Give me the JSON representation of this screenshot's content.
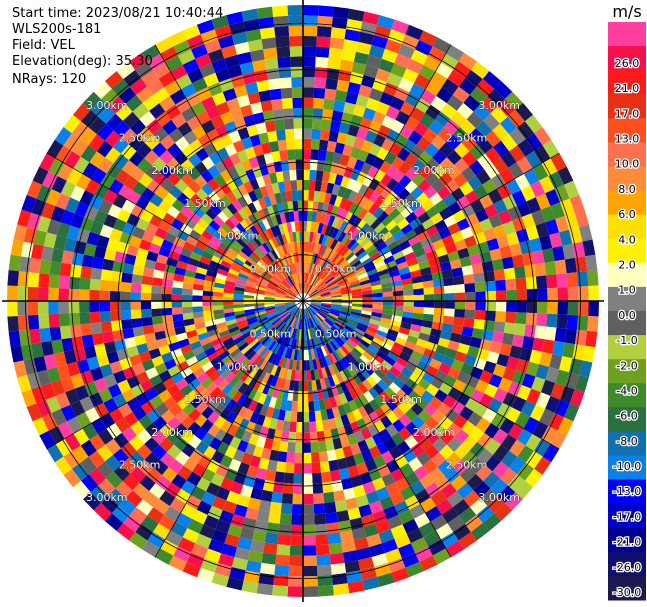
{
  "info": {
    "start_time": "Start time: 2023/08/21 10:40:44",
    "instrument": "WLS200s-181",
    "field": "Field: VEL",
    "elevation": "Elevation(deg): 35.30",
    "nrays": "NRays: 120"
  },
  "colorbar": {
    "unit": "m/s",
    "ticks": [
      "26.0",
      "21.0",
      "17.0",
      "13.0",
      "10.0",
      "8.0",
      "6.0",
      "4.0",
      "2.0",
      "1.0",
      "0.0",
      "-1.0",
      "-2.0",
      "-4.0",
      "-6.0",
      "-8.0",
      "-10.0",
      "-13.0",
      "-17.0",
      "-21.0",
      "-26.0",
      "-30.0"
    ],
    "colors": [
      "#ff3fa0",
      "#f5104a",
      "#ff1a1a",
      "#e83015",
      "#ff4f1f",
      "#ff7050",
      "#ff8a3a",
      "#ffa400",
      "#ffe000",
      "#fff200",
      "#ffffc0",
      "#808080",
      "#606060",
      "#b0d040",
      "#70a020",
      "#3f8a2a",
      "#2a7040",
      "#1070b0",
      "#0a80e8",
      "#0000ff",
      "#0000c8",
      "#000090",
      "#101070",
      "#1a1a50"
    ]
  },
  "chart_data": {
    "type": "heatmap",
    "title": "",
    "field": "VEL",
    "unit": "m/s",
    "elevation_deg": 35.3,
    "n_rays": 120,
    "range_rings_km": [
      0.5,
      1.0,
      1.5,
      2.0,
      2.5,
      3.0
    ],
    "range_labels": [
      "0.50km",
      "1.00km",
      "1.50km",
      "2.00km",
      "2.50km",
      "3.00km"
    ],
    "value_range": [
      -30.0,
      26.0
    ],
    "near_field_pattern": "positive (red-orange-yellow) north half, negative (green-blue) south half within ~0.5 km; far field noise across full scale"
  }
}
